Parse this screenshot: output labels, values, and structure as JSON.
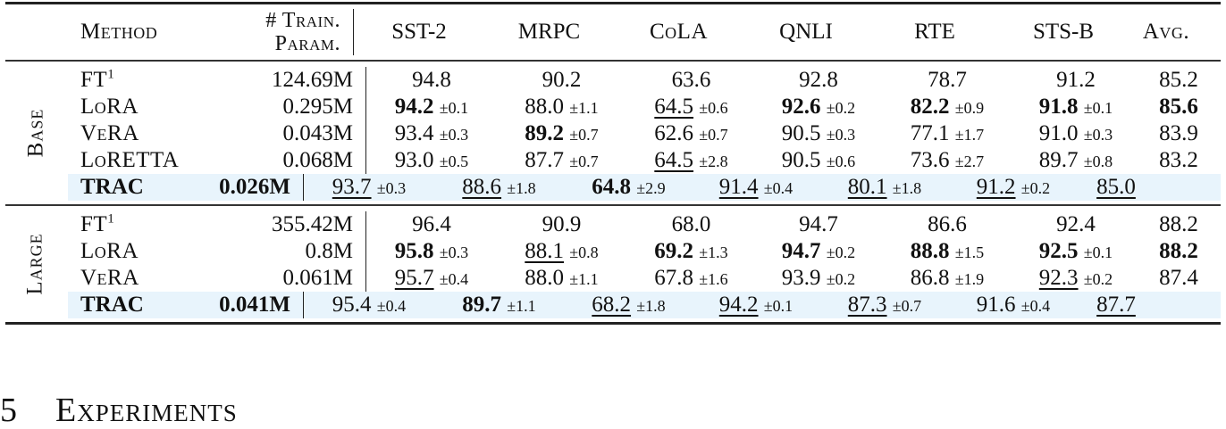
{
  "table": {
    "headers": {
      "method": "Method",
      "params_line1": "# Train.",
      "params_line2": "Param.",
      "tasks": [
        "SST-2",
        "MRPC",
        "CoLA",
        "QNLI",
        "RTE",
        "STS-B",
        "Avg."
      ]
    },
    "highlight_color": "#e8f4fc",
    "groups": [
      {
        "label": "Base",
        "rows": [
          {
            "method": "FT",
            "sup": "1",
            "params": "124.69M",
            "highlight": false,
            "params_bold": false,
            "cells": [
              {
                "v": "94.8",
                "pm": "",
                "bold": false,
                "underline": false
              },
              {
                "v": "90.2",
                "pm": "",
                "bold": false,
                "underline": false
              },
              {
                "v": "63.6",
                "pm": "",
                "bold": false,
                "underline": false
              },
              {
                "v": "92.8",
                "pm": "",
                "bold": false,
                "underline": false
              },
              {
                "v": "78.7",
                "pm": "",
                "bold": false,
                "underline": false
              },
              {
                "v": "91.2",
                "pm": "",
                "bold": false,
                "underline": false
              },
              {
                "v": "85.2",
                "pm": "",
                "bold": false,
                "underline": false
              }
            ]
          },
          {
            "method": "LoRA",
            "sup": "",
            "params": "0.295M",
            "highlight": false,
            "params_bold": false,
            "cells": [
              {
                "v": "94.2",
                "pm": "±0.1",
                "bold": true,
                "underline": false
              },
              {
                "v": "88.0",
                "pm": "±1.1",
                "bold": false,
                "underline": false
              },
              {
                "v": "64.5",
                "pm": "±0.6",
                "bold": false,
                "underline": true
              },
              {
                "v": "92.6",
                "pm": "±0.2",
                "bold": true,
                "underline": false
              },
              {
                "v": "82.2",
                "pm": "±0.9",
                "bold": true,
                "underline": false
              },
              {
                "v": "91.8",
                "pm": "±0.1",
                "bold": true,
                "underline": false
              },
              {
                "v": "85.6",
                "pm": "",
                "bold": true,
                "underline": false
              }
            ]
          },
          {
            "method": "VeRA",
            "sup": "",
            "params": "0.043M",
            "highlight": false,
            "params_bold": false,
            "cells": [
              {
                "v": "93.4",
                "pm": "±0.3",
                "bold": false,
                "underline": false
              },
              {
                "v": "89.2",
                "pm": "±0.7",
                "bold": true,
                "underline": false
              },
              {
                "v": "62.6",
                "pm": "±0.7",
                "bold": false,
                "underline": false
              },
              {
                "v": "90.5",
                "pm": "±0.3",
                "bold": false,
                "underline": false
              },
              {
                "v": "77.1",
                "pm": "±1.7",
                "bold": false,
                "underline": false
              },
              {
                "v": "91.0",
                "pm": "±0.3",
                "bold": false,
                "underline": false
              },
              {
                "v": "83.9",
                "pm": "",
                "bold": false,
                "underline": false
              }
            ]
          },
          {
            "method": "LoRETTA",
            "sup": "",
            "params": "0.068M",
            "highlight": false,
            "params_bold": false,
            "cells": [
              {
                "v": "93.0",
                "pm": "±0.5",
                "bold": false,
                "underline": false
              },
              {
                "v": "87.7",
                "pm": "±0.7",
                "bold": false,
                "underline": false
              },
              {
                "v": "64.5",
                "pm": "±2.8",
                "bold": false,
                "underline": true
              },
              {
                "v": "90.5",
                "pm": "±0.6",
                "bold": false,
                "underline": false
              },
              {
                "v": "73.6",
                "pm": "±2.7",
                "bold": false,
                "underline": false
              },
              {
                "v": "89.7",
                "pm": "±0.8",
                "bold": false,
                "underline": false
              },
              {
                "v": "83.2",
                "pm": "",
                "bold": false,
                "underline": false
              }
            ]
          },
          {
            "method": "TRAC",
            "sup": "",
            "params": "0.026M",
            "highlight": true,
            "params_bold": true,
            "cells": [
              {
                "v": "93.7",
                "pm": "±0.3",
                "bold": false,
                "underline": true
              },
              {
                "v": "88.6",
                "pm": "±1.8",
                "bold": false,
                "underline": true
              },
              {
                "v": "64.8",
                "pm": "±2.9",
                "bold": true,
                "underline": false
              },
              {
                "v": "91.4",
                "pm": "±0.4",
                "bold": false,
                "underline": true
              },
              {
                "v": "80.1",
                "pm": "±1.8",
                "bold": false,
                "underline": true
              },
              {
                "v": "91.2",
                "pm": "±0.2",
                "bold": false,
                "underline": true
              },
              {
                "v": "85.0",
                "pm": "",
                "bold": false,
                "underline": true
              }
            ]
          }
        ]
      },
      {
        "label": "Large",
        "rows": [
          {
            "method": "FT",
            "sup": "1",
            "params": "355.42M",
            "highlight": false,
            "params_bold": false,
            "cells": [
              {
                "v": "96.4",
                "pm": "",
                "bold": false,
                "underline": false
              },
              {
                "v": "90.9",
                "pm": "",
                "bold": false,
                "underline": false
              },
              {
                "v": "68.0",
                "pm": "",
                "bold": false,
                "underline": false
              },
              {
                "v": "94.7",
                "pm": "",
                "bold": false,
                "underline": false
              },
              {
                "v": "86.6",
                "pm": "",
                "bold": false,
                "underline": false
              },
              {
                "v": "92.4",
                "pm": "",
                "bold": false,
                "underline": false
              },
              {
                "v": "88.2",
                "pm": "",
                "bold": false,
                "underline": false
              }
            ]
          },
          {
            "method": "LoRA",
            "sup": "",
            "params": "0.8M",
            "highlight": false,
            "params_bold": false,
            "cells": [
              {
                "v": "95.8",
                "pm": "±0.3",
                "bold": true,
                "underline": false
              },
              {
                "v": "88.1",
                "pm": "±0.8",
                "bold": false,
                "underline": true
              },
              {
                "v": "69.2",
                "pm": "±1.3",
                "bold": true,
                "underline": false
              },
              {
                "v": "94.7",
                "pm": "±0.2",
                "bold": true,
                "underline": false
              },
              {
                "v": "88.8",
                "pm": "±1.5",
                "bold": true,
                "underline": false
              },
              {
                "v": "92.5",
                "pm": "±0.1",
                "bold": true,
                "underline": false
              },
              {
                "v": "88.2",
                "pm": "",
                "bold": true,
                "underline": false
              }
            ]
          },
          {
            "method": "VeRA",
            "sup": "",
            "params": "0.061M",
            "highlight": false,
            "params_bold": false,
            "cells": [
              {
                "v": "95.7",
                "pm": "±0.4",
                "bold": false,
                "underline": true
              },
              {
                "v": "88.0",
                "pm": "±1.1",
                "bold": false,
                "underline": false
              },
              {
                "v": "67.8",
                "pm": "±1.6",
                "bold": false,
                "underline": false
              },
              {
                "v": "93.9",
                "pm": "±0.2",
                "bold": false,
                "underline": false
              },
              {
                "v": "86.8",
                "pm": "±1.9",
                "bold": false,
                "underline": false
              },
              {
                "v": "92.3",
                "pm": "±0.2",
                "bold": false,
                "underline": true
              },
              {
                "v": "87.4",
                "pm": "",
                "bold": false,
                "underline": false
              }
            ]
          },
          {
            "method": "TRAC",
            "sup": "",
            "params": "0.041M",
            "highlight": true,
            "params_bold": true,
            "cells": [
              {
                "v": "95.4",
                "pm": "±0.4",
                "bold": false,
                "underline": false
              },
              {
                "v": "89.7",
                "pm": "±1.1",
                "bold": true,
                "underline": false
              },
              {
                "v": "68.2",
                "pm": "±1.8",
                "bold": false,
                "underline": true
              },
              {
                "v": "94.2",
                "pm": "±0.1",
                "bold": false,
                "underline": true
              },
              {
                "v": "87.3",
                "pm": "±0.7",
                "bold": false,
                "underline": true
              },
              {
                "v": "91.6",
                "pm": "±0.4",
                "bold": false,
                "underline": false
              },
              {
                "v": "87.7",
                "pm": "",
                "bold": false,
                "underline": true
              }
            ]
          }
        ]
      }
    ]
  },
  "section": {
    "number": "5",
    "title": "Experiments"
  }
}
